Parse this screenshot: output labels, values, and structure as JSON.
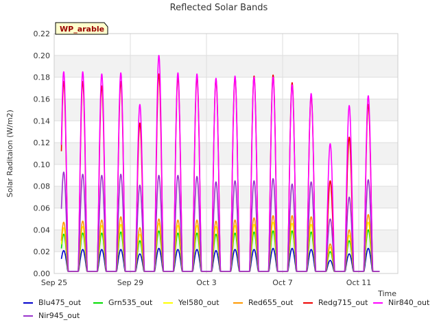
{
  "chart_data": {
    "type": "line",
    "title": "Reflected Solar Bands",
    "xlabel": "Time",
    "ylabel": "Solar Raditaion (W/m2)",
    "annotation": "WP_arable",
    "xlim": [
      "Sep 25",
      "Oct 13"
    ],
    "ylim": [
      0,
      0.22
    ],
    "yticks": [
      0.0,
      0.02,
      0.04,
      0.06,
      0.08,
      0.1,
      0.12,
      0.14,
      0.16,
      0.18,
      0.2,
      0.22
    ],
    "ytick_labels": [
      "0.00",
      "0.02",
      "0.04",
      "0.06",
      "0.08",
      "0.10",
      "0.12",
      "0.14",
      "0.16",
      "0.18",
      "0.20",
      "0.22"
    ],
    "xtick_labels": [
      "Sep 25",
      "Sep 29",
      "Oct 3",
      "Oct 7",
      "Oct 11"
    ],
    "xtick_days": [
      0,
      4,
      8,
      12,
      16
    ],
    "grid": true,
    "background_bands": true,
    "legend_placement": "bottom",
    "series": [
      {
        "name": "Blu475_out",
        "color": "#0000cc",
        "daily_peaks": [
          0.021,
          0.022,
          0.022,
          0.022,
          0.018,
          0.023,
          0.022,
          0.022,
          0.021,
          0.022,
          0.022,
          0.023,
          0.023,
          0.022,
          0.012,
          0.018,
          0.023
        ]
      },
      {
        "name": "Grn535_out",
        "color": "#00dd00",
        "daily_peaks": [
          0.036,
          0.037,
          0.037,
          0.038,
          0.03,
          0.039,
          0.037,
          0.037,
          0.036,
          0.037,
          0.038,
          0.039,
          0.039,
          0.038,
          0.02,
          0.03,
          0.04
        ]
      },
      {
        "name": "Yel580_out",
        "color": "#ffff00",
        "daily_peaks": [
          0.042,
          0.043,
          0.044,
          0.045,
          0.036,
          0.046,
          0.044,
          0.044,
          0.043,
          0.044,
          0.045,
          0.047,
          0.046,
          0.045,
          0.024,
          0.035,
          0.047
        ]
      },
      {
        "name": "Red655_out",
        "color": "#ff9900",
        "daily_peaks": [
          0.047,
          0.048,
          0.049,
          0.052,
          0.042,
          0.05,
          0.049,
          0.049,
          0.048,
          0.049,
          0.051,
          0.053,
          0.053,
          0.052,
          0.027,
          0.04,
          0.054
        ]
      },
      {
        "name": "Redg715_out",
        "color": "#ee0000",
        "daily_peaks": [
          0.176,
          0.176,
          0.172,
          0.176,
          0.138,
          0.183,
          0.18,
          0.18,
          0.178,
          0.18,
          0.181,
          0.182,
          0.175,
          0.163,
          0.085,
          0.125,
          0.155
        ]
      },
      {
        "name": "Nir840_out",
        "color": "#ff00ff",
        "daily_peaks": [
          0.185,
          0.185,
          0.183,
          0.184,
          0.155,
          0.2,
          0.184,
          0.183,
          0.179,
          0.181,
          0.18,
          0.18,
          0.173,
          0.165,
          0.119,
          0.154,
          0.163
        ]
      },
      {
        "name": "Nir945_out",
        "color": "#9933cc",
        "daily_peaks": [
          0.093,
          0.091,
          0.09,
          0.091,
          0.081,
          0.09,
          0.09,
          0.089,
          0.084,
          0.085,
          0.085,
          0.087,
          0.082,
          0.084,
          0.05,
          0.07,
          0.086
        ]
      }
    ]
  }
}
